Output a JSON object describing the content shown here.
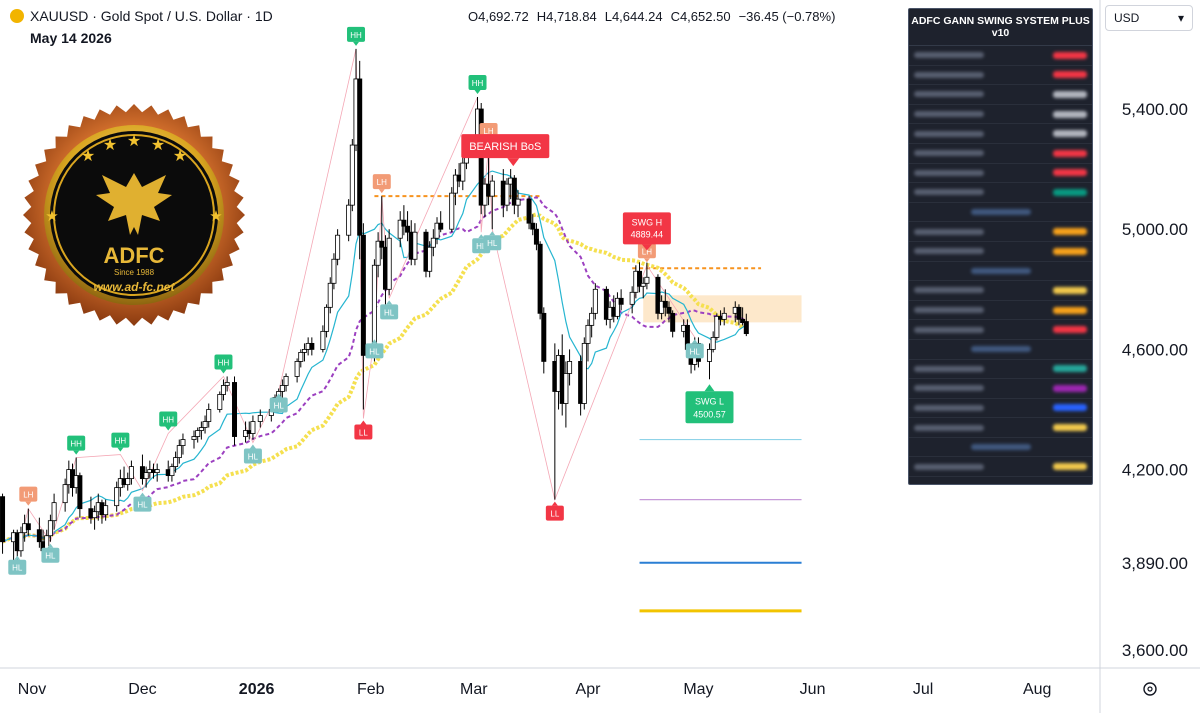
{
  "header": {
    "symbol": "XAUUSD · Gold Spot / U.S. Dollar · 1D",
    "date": "May 14 2026",
    "ohlc": {
      "open": "O4,692.72",
      "high": "H4,718.84",
      "low": "L4,644.24",
      "close": "C4,652.50",
      "change": "−36.45 (−0.78%)"
    }
  },
  "currency": {
    "label": "USD",
    "chevron": "chevron-down-icon"
  },
  "panel": {
    "title": "ADFC GANN SWING SYSTEM PLUS v10",
    "row_value_colors": [
      "#f23645",
      "#f23645",
      "#b2b5be",
      "#b2b5be",
      "#b2b5be",
      "#f23645",
      "#f23645",
      "#089981",
      "#4a6ea8",
      "#f7a21b",
      "#f7a21b",
      "#4a6ea8",
      "#f2c94c",
      "#f7a21b",
      "#f23645",
      "#4a6ea8",
      "#26a69a",
      "#9c27b0",
      "#2962ff",
      "#f2c94c",
      "#4a6ea8",
      "#f2c94c"
    ]
  },
  "logo": {
    "name": "ADFC",
    "since": "Since 1988",
    "url": "www.ad-fc.net"
  },
  "colors": {
    "up": "#ffffff",
    "down": "#000000",
    "bull_label": "#22c07a",
    "bear_label": "#f23645",
    "lh_label": "#f29b76",
    "hl_label": "#7fc4c4",
    "cyan_ma": "#26b5d0",
    "purple_ma": "#9c40c0",
    "yellow_ma": "#f5e050",
    "orange_level": "#f7931e"
  },
  "chart_data": {
    "type": "candlestick",
    "timeframe": "1D",
    "y_axis": {
      "ticks": [
        "5,400.00",
        "5,000.00",
        "4,600.00",
        "4,200.00",
        "3,890.00",
        "3,600.00"
      ],
      "range": [
        3560,
        5720
      ]
    },
    "x_axis": {
      "labels": [
        "Nov",
        "Dec",
        "2026",
        "Feb",
        "Mar",
        "Apr",
        "May",
        "Jun",
        "Jul",
        "Aug"
      ]
    },
    "swing_labels": [
      {
        "text": "HL",
        "date": "2025-10-28",
        "price": 3920
      },
      {
        "text": "LH",
        "date": "2025-10-31",
        "price": 4070
      },
      {
        "text": "HL",
        "date": "2025-11-06",
        "price": 3960
      },
      {
        "text": "HH",
        "date": "2025-11-13",
        "price": 4240
      },
      {
        "text": "HH",
        "date": "2025-11-25",
        "price": 4250
      },
      {
        "text": "HL",
        "date": "2025-12-01",
        "price": 4130
      },
      {
        "text": "HH",
        "date": "2025-12-08",
        "price": 4320
      },
      {
        "text": "HH",
        "date": "2025-12-23",
        "price": 4510
      },
      {
        "text": "HL",
        "date": "2025-12-31",
        "price": 4290
      },
      {
        "text": "HL",
        "date": "2026-01-07",
        "price": 4460
      },
      {
        "text": "HH",
        "date": "2026-01-28",
        "price": 5600
      },
      {
        "text": "LL",
        "date": "2026-01-30",
        "price": 4370
      },
      {
        "text": "HL",
        "date": "2026-02-02",
        "price": 4640
      },
      {
        "text": "LH",
        "date": "2026-02-04",
        "price": 5110
      },
      {
        "text": "HL",
        "date": "2026-02-06",
        "price": 4770
      },
      {
        "text": "HH",
        "date": "2026-03-02",
        "price": 5440
      },
      {
        "text": "HL",
        "date": "2026-03-03",
        "price": 4990
      },
      {
        "text": "LH",
        "date": "2026-03-05",
        "price": 5280
      },
      {
        "text": "HL",
        "date": "2026-03-06",
        "price": 5000
      },
      {
        "text": "LL",
        "date": "2026-03-23",
        "price": 4100
      },
      {
        "text": "LH",
        "date": "2026-04-17",
        "price": 4880
      },
      {
        "text": "HL",
        "date": "2026-04-30",
        "price": 4640
      }
    ],
    "annotations": [
      {
        "text": "BEARISH BoS",
        "date": "2026-03-09",
        "price": 5150
      },
      {
        "text": "SWG H",
        "value": "4889.44",
        "date": "2026-04-17",
        "price": 4889.44
      },
      {
        "text": "SWG L",
        "value": "4500.57",
        "date": "2026-05-04",
        "price": 4500.57
      }
    ],
    "levels": [
      {
        "name": "bos-level",
        "price": 5110,
        "from": "2026-02-02",
        "to": "2026-03-19"
      },
      {
        "name": "swing-high-level",
        "price": 4870,
        "from": "2026-04-13",
        "to": "2026-05-18"
      },
      {
        "name": "cyan-target",
        "price": 4300,
        "from": "2026-04-15",
        "to": "2026-05-29"
      },
      {
        "name": "purple-target",
        "price": 4100,
        "from": "2026-04-15",
        "to": "2026-05-29"
      },
      {
        "name": "blue-target",
        "price": 3890,
        "from": "2026-04-15",
        "to": "2026-05-29"
      },
      {
        "name": "yellow-target",
        "price": 3730,
        "from": "2026-04-15",
        "to": "2026-05-29"
      }
    ],
    "candles": [
      [
        "2025-10-24",
        4110,
        4120,
        3920,
        3960
      ],
      [
        "2025-10-27",
        3960,
        4000,
        3880,
        3990
      ],
      [
        "2025-10-28",
        3990,
        4000,
        3870,
        3930
      ],
      [
        "2025-10-29",
        3930,
        4010,
        3910,
        3990
      ],
      [
        "2025-10-30",
        3990,
        4050,
        3960,
        4020
      ],
      [
        "2025-10-31",
        4020,
        4070,
        3980,
        4000
      ],
      [
        "2025-11-03",
        4000,
        4040,
        3940,
        3960
      ],
      [
        "2025-11-04",
        3960,
        4000,
        3910,
        3930
      ],
      [
        "2025-11-05",
        3930,
        4000,
        3920,
        3980
      ],
      [
        "2025-11-06",
        3980,
        4050,
        3960,
        4030
      ],
      [
        "2025-11-07",
        4030,
        4120,
        4000,
        4090
      ],
      [
        "2025-11-10",
        4090,
        4170,
        4060,
        4150
      ],
      [
        "2025-11-11",
        4150,
        4230,
        4120,
        4200
      ],
      [
        "2025-11-12",
        4200,
        4220,
        4110,
        4140
      ],
      [
        "2025-11-13",
        4140,
        4240,
        4120,
        4180
      ],
      [
        "2025-11-14",
        4180,
        4190,
        4040,
        4070
      ],
      [
        "2025-11-17",
        4070,
        4110,
        4020,
        4040
      ],
      [
        "2025-11-18",
        4040,
        4080,
        4000,
        4060
      ],
      [
        "2025-11-19",
        4060,
        4120,
        4030,
        4090
      ],
      [
        "2025-11-20",
        4090,
        4100,
        4020,
        4050
      ],
      [
        "2025-11-21",
        4050,
        4100,
        4030,
        4080
      ],
      [
        "2025-11-24",
        4080,
        4160,
        4060,
        4140
      ],
      [
        "2025-11-25",
        4140,
        4200,
        4110,
        4170
      ],
      [
        "2025-11-26",
        4170,
        4210,
        4140,
        4150
      ],
      [
        "2025-11-27",
        4150,
        4190,
        4130,
        4170
      ],
      [
        "2025-11-28",
        4170,
        4230,
        4150,
        4210
      ],
      [
        "2025-12-01",
        4210,
        4250,
        4150,
        4170
      ],
      [
        "2025-12-02",
        4170,
        4210,
        4140,
        4190
      ],
      [
        "2025-12-03",
        4190,
        4230,
        4170,
        4200
      ],
      [
        "2025-12-04",
        4200,
        4220,
        4170,
        4190
      ],
      [
        "2025-12-05",
        4190,
        4220,
        4160,
        4200
      ],
      [
        "2025-12-08",
        4200,
        4230,
        4160,
        4180
      ],
      [
        "2025-12-09",
        4180,
        4220,
        4160,
        4210
      ],
      [
        "2025-12-10",
        4210,
        4260,
        4190,
        4240
      ],
      [
        "2025-12-11",
        4240,
        4300,
        4220,
        4280
      ],
      [
        "2025-12-12",
        4280,
        4320,
        4250,
        4300
      ],
      [
        "2025-12-15",
        4300,
        4330,
        4270,
        4310
      ],
      [
        "2025-12-16",
        4310,
        4340,
        4290,
        4330
      ],
      [
        "2025-12-17",
        4330,
        4360,
        4300,
        4340
      ],
      [
        "2025-12-18",
        4340,
        4380,
        4320,
        4360
      ],
      [
        "2025-12-19",
        4360,
        4420,
        4340,
        4400
      ],
      [
        "2025-12-22",
        4400,
        4460,
        4390,
        4450
      ],
      [
        "2025-12-23",
        4450,
        4500,
        4430,
        4480
      ],
      [
        "2025-12-24",
        4480,
        4510,
        4460,
        4490
      ],
      [
        "2025-12-26",
        4490,
        4510,
        4280,
        4310
      ],
      [
        "2025-12-29",
        4310,
        4360,
        4290,
        4330
      ],
      [
        "2025-12-30",
        4330,
        4360,
        4300,
        4320
      ],
      [
        "2025-12-31",
        4320,
        4380,
        4300,
        4360
      ],
      [
        "2026-01-02",
        4360,
        4400,
        4340,
        4380
      ],
      [
        "2026-01-05",
        4380,
        4420,
        4360,
        4400
      ],
      [
        "2026-01-06",
        4400,
        4450,
        4390,
        4440
      ],
      [
        "2026-01-07",
        4440,
        4470,
        4420,
        4460
      ],
      [
        "2026-01-08",
        4460,
        4500,
        4440,
        4480
      ],
      [
        "2026-01-09",
        4480,
        4520,
        4460,
        4510
      ],
      [
        "2026-01-12",
        4510,
        4570,
        4490,
        4560
      ],
      [
        "2026-01-13",
        4560,
        4600,
        4540,
        4590
      ],
      [
        "2026-01-14",
        4590,
        4620,
        4560,
        4600
      ],
      [
        "2026-01-15",
        4600,
        4640,
        4580,
        4620
      ],
      [
        "2026-01-16",
        4620,
        4640,
        4580,
        4600
      ],
      [
        "2026-01-19",
        4600,
        4680,
        4590,
        4660
      ],
      [
        "2026-01-20",
        4660,
        4750,
        4640,
        4740
      ],
      [
        "2026-01-21",
        4740,
        4840,
        4720,
        4820
      ],
      [
        "2026-01-22",
        4820,
        4920,
        4800,
        4900
      ],
      [
        "2026-01-23",
        4900,
        5000,
        4880,
        4980
      ],
      [
        "2026-01-26",
        4980,
        5100,
        4960,
        5080
      ],
      [
        "2026-01-27",
        5080,
        5300,
        5060,
        5280
      ],
      [
        "2026-01-28",
        5280,
        5600,
        5260,
        5500
      ],
      [
        "2026-01-29",
        5500,
        5560,
        4900,
        4980
      ],
      [
        "2026-01-30",
        4980,
        5020,
        4400,
        4580
      ],
      [
        "2026-02-02",
        4580,
        4900,
        4560,
        4880
      ],
      [
        "2026-02-03",
        4880,
        4990,
        4840,
        4960
      ],
      [
        "2026-02-04",
        4960,
        5110,
        4900,
        4940
      ],
      [
        "2026-02-05",
        4940,
        4980,
        4750,
        4800
      ],
      [
        "2026-02-06",
        4800,
        5000,
        4780,
        4970
      ],
      [
        "2026-02-09",
        4970,
        5060,
        4940,
        5030
      ],
      [
        "2026-02-10",
        5030,
        5080,
        4980,
        5010
      ],
      [
        "2026-02-11",
        5010,
        5060,
        4960,
        4990
      ],
      [
        "2026-02-12",
        4990,
        5030,
        4880,
        4900
      ],
      [
        "2026-02-13",
        4900,
        5020,
        4880,
        4990
      ],
      [
        "2026-02-16",
        4990,
        5000,
        4840,
        4860
      ],
      [
        "2026-02-17",
        4860,
        4960,
        4840,
        4940
      ],
      [
        "2026-02-18",
        4940,
        5000,
        4910,
        4970
      ],
      [
        "2026-02-19",
        4970,
        5040,
        4950,
        5020
      ],
      [
        "2026-02-20",
        5020,
        5060,
        4990,
        5000
      ],
      [
        "2026-02-23",
        5000,
        5140,
        4990,
        5120
      ],
      [
        "2026-02-24",
        5120,
        5200,
        5080,
        5180
      ],
      [
        "2026-02-25",
        5180,
        5220,
        5140,
        5160
      ],
      [
        "2026-02-26",
        5160,
        5240,
        5130,
        5220
      ],
      [
        "2026-02-27",
        5220,
        5300,
        5200,
        5280
      ],
      [
        "2026-03-02",
        5280,
        5440,
        5260,
        5400
      ],
      [
        "2026-03-03",
        5400,
        5420,
        5050,
        5080
      ],
      [
        "2026-03-04",
        5080,
        5170,
        5040,
        5150
      ],
      [
        "2026-03-05",
        5150,
        5280,
        5080,
        5110
      ],
      [
        "2026-03-06",
        5110,
        5180,
        5000,
        5160
      ],
      [
        "2026-03-09",
        5160,
        5200,
        5040,
        5080
      ],
      [
        "2026-03-10",
        5080,
        5170,
        5060,
        5150
      ],
      [
        "2026-03-11",
        5150,
        5200,
        5100,
        5170
      ],
      [
        "2026-03-12",
        5170,
        5180,
        5050,
        5080
      ],
      [
        "2026-03-13",
        5080,
        5130,
        5040,
        5100
      ],
      [
        "2026-03-16",
        5100,
        5110,
        5000,
        5020
      ],
      [
        "2026-03-17",
        5020,
        5050,
        4980,
        5000
      ],
      [
        "2026-03-18",
        5000,
        5020,
        4930,
        4950
      ],
      [
        "2026-03-19",
        4950,
        4960,
        4700,
        4720
      ],
      [
        "2026-03-20",
        4720,
        4740,
        4520,
        4560
      ],
      [
        "2026-03-23",
        4560,
        4620,
        4100,
        4460
      ],
      [
        "2026-03-24",
        4460,
        4600,
        4400,
        4580
      ],
      [
        "2026-03-25",
        4580,
        4650,
        4380,
        4420
      ],
      [
        "2026-03-26",
        4420,
        4560,
        4340,
        4520
      ],
      [
        "2026-03-27",
        4520,
        4600,
        4480,
        4560
      ],
      [
        "2026-03-30",
        4560,
        4580,
        4380,
        4420
      ],
      [
        "2026-03-31",
        4420,
        4640,
        4400,
        4620
      ],
      [
        "2026-04-01",
        4620,
        4700,
        4560,
        4680
      ],
      [
        "2026-04-02",
        4680,
        4740,
        4640,
        4720
      ],
      [
        "2026-04-03",
        4720,
        4820,
        4700,
        4800
      ],
      [
        "2026-04-06",
        4800,
        4810,
        4680,
        4700
      ],
      [
        "2026-04-07",
        4700,
        4760,
        4670,
        4740
      ],
      [
        "2026-04-08",
        4740,
        4780,
        4690,
        4710
      ],
      [
        "2026-04-09",
        4710,
        4790,
        4700,
        4770
      ],
      [
        "2026-04-10",
        4770,
        4800,
        4730,
        4750
      ],
      [
        "2026-04-13",
        4750,
        4810,
        4720,
        4790
      ],
      [
        "2026-04-14",
        4790,
        4880,
        4770,
        4860
      ],
      [
        "2026-04-15",
        4860,
        4890,
        4790,
        4810
      ],
      [
        "2026-04-16",
        4810,
        4840,
        4770,
        4820
      ],
      [
        "2026-04-17",
        4820,
        4889,
        4800,
        4840
      ],
      [
        "2026-04-20",
        4840,
        4850,
        4700,
        4720
      ],
      [
        "2026-04-21",
        4720,
        4780,
        4700,
        4760
      ],
      [
        "2026-04-22",
        4760,
        4800,
        4710,
        4740
      ],
      [
        "2026-04-23",
        4740,
        4760,
        4690,
        4720
      ],
      [
        "2026-04-24",
        4720,
        4730,
        4640,
        4660
      ],
      [
        "2026-04-27",
        4660,
        4700,
        4640,
        4680
      ],
      [
        "2026-04-28",
        4680,
        4700,
        4580,
        4600
      ],
      [
        "2026-04-29",
        4600,
        4620,
        4520,
        4550
      ],
      [
        "2026-04-30",
        4550,
        4640,
        4530,
        4620
      ],
      [
        "2026-05-01",
        4620,
        4640,
        4540,
        4560
      ],
      [
        "2026-05-04",
        4560,
        4620,
        4500.57,
        4600
      ],
      [
        "2026-05-05",
        4600,
        4660,
        4590,
        4640
      ],
      [
        "2026-05-06",
        4640,
        4720,
        4630,
        4710
      ],
      [
        "2026-05-07",
        4710,
        4730,
        4680,
        4700
      ],
      [
        "2026-05-08",
        4700,
        4740,
        4680,
        4720
      ],
      [
        "2026-05-11",
        4720,
        4760,
        4690,
        4740
      ],
      [
        "2026-05-12",
        4740,
        4750,
        4680,
        4700
      ],
      [
        "2026-05-13",
        4700,
        4740,
        4680,
        4689
      ],
      [
        "2026-05-14",
        4692.72,
        4718.84,
        4644.24,
        4652.5
      ]
    ]
  }
}
